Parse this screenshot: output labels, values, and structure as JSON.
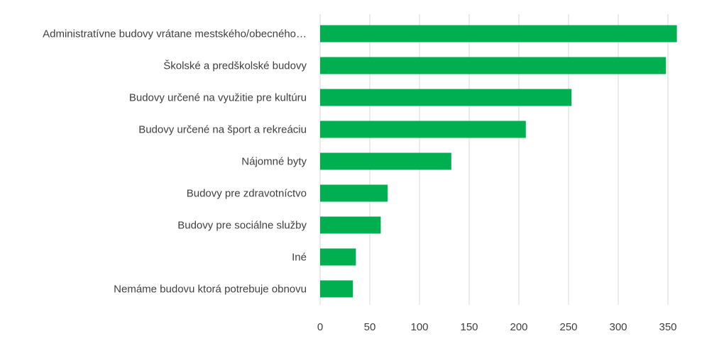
{
  "chart_data": {
    "type": "bar",
    "orientation": "horizontal",
    "categories": [
      "Administratívne budovy vrátane mestského/obecného…",
      "Školské a predškolské budovy",
      "Budovy určené na využitie pre kultúru",
      "Budovy určené na šport a rekreáciu",
      "Nájomné byty",
      "Budovy pre zdravotníctvo",
      "Budovy pre sociálne služby",
      "Iné",
      "Nemáme budovu ktorá potrebuje obnovu"
    ],
    "values": [
      359,
      348,
      253,
      207,
      132,
      68,
      61,
      36,
      33
    ],
    "xlim": [
      0,
      350
    ],
    "xticks": [
      0,
      50,
      100,
      150,
      200,
      250,
      300,
      350
    ],
    "title": "",
    "xlabel": "",
    "ylabel": "",
    "grid": "vertical",
    "legend": "none",
    "colors": {
      "bar": "#00b050",
      "grid": "#d9d9d9",
      "text": "#404040"
    }
  }
}
